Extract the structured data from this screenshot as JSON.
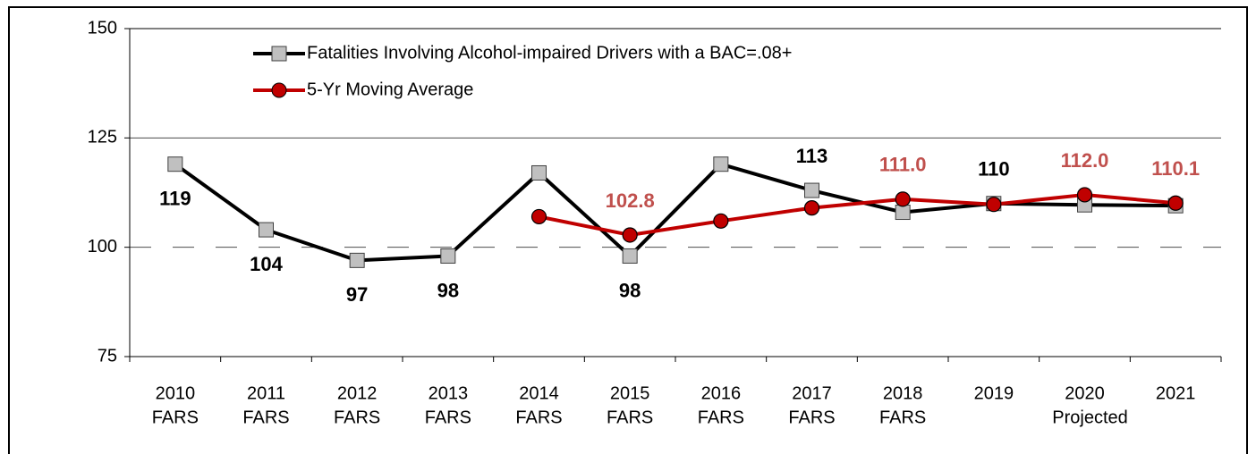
{
  "chart_data": {
    "type": "line",
    "categories": [
      [
        "2010",
        "FARS"
      ],
      [
        "2011",
        "FARS"
      ],
      [
        "2012",
        "FARS"
      ],
      [
        "2013",
        "FARS"
      ],
      [
        "2014",
        "FARS"
      ],
      [
        "2015",
        "FARS"
      ],
      [
        "2016",
        "FARS"
      ],
      [
        "2017",
        "FARS"
      ],
      [
        "2018",
        "FARS"
      ],
      [
        "2019"
      ],
      [
        "2020",
        "Projected"
      ],
      [
        "2021"
      ]
    ],
    "series": [
      {
        "name": "Fatalities Involving Alcohol-impaired Drivers with a BAC=.08+",
        "color": "#000000",
        "marker_color": "#c0c0c0",
        "marker": "square",
        "values": [
          119,
          104,
          97,
          98,
          117,
          98,
          119,
          113,
          108,
          110,
          109.7,
          109.5
        ],
        "value_labels": [
          "119",
          "104",
          "97",
          "98",
          null,
          "98",
          null,
          "113",
          null,
          "110",
          null,
          null
        ]
      },
      {
        "name": "5-Yr Moving Average",
        "color": "#c00000",
        "marker_color": "#c00000",
        "label_color": "#c0504d",
        "marker": "circle",
        "values": [
          null,
          null,
          null,
          null,
          107,
          102.8,
          106,
          109,
          111,
          109.8,
          112,
          110.1
        ],
        "value_labels": [
          null,
          null,
          null,
          null,
          null,
          "102.8",
          null,
          null,
          "111.0",
          null,
          "112.0",
          "110.1"
        ]
      }
    ],
    "ylim": [
      75,
      150
    ],
    "yticks": [
      75,
      100,
      125,
      150
    ],
    "grid": true
  }
}
